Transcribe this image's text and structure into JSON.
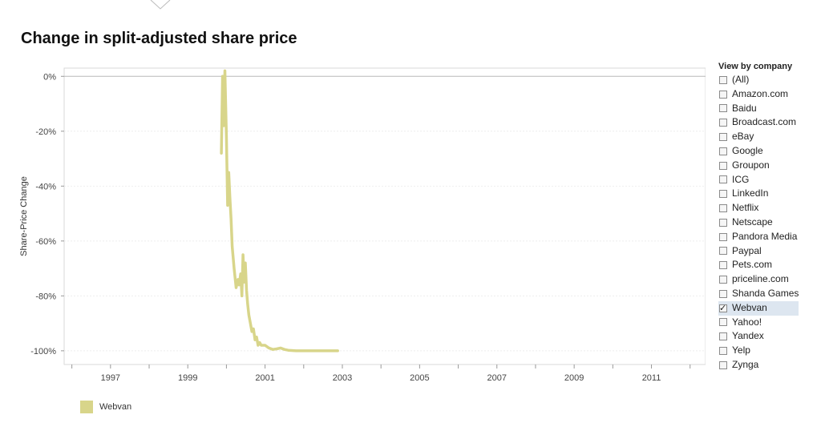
{
  "page": {
    "title": "Change in split-adjusted share price"
  },
  "filter": {
    "title": "View by company",
    "items": [
      {
        "label": "(All)",
        "checked": false
      },
      {
        "label": "Amazon.com",
        "checked": false
      },
      {
        "label": "Baidu",
        "checked": false
      },
      {
        "label": "Broadcast.com",
        "checked": false
      },
      {
        "label": "eBay",
        "checked": false
      },
      {
        "label": "Google",
        "checked": false
      },
      {
        "label": "Groupon",
        "checked": false
      },
      {
        "label": "ICG",
        "checked": false
      },
      {
        "label": "LinkedIn",
        "checked": false
      },
      {
        "label": "Netflix",
        "checked": false
      },
      {
        "label": "Netscape",
        "checked": false
      },
      {
        "label": "Pandora Media",
        "checked": false
      },
      {
        "label": "Paypal",
        "checked": false
      },
      {
        "label": "Pets.com",
        "checked": false
      },
      {
        "label": "priceline.com",
        "checked": false
      },
      {
        "label": "Shanda Games",
        "checked": false
      },
      {
        "label": "Webvan",
        "checked": true
      },
      {
        "label": "Yahoo!",
        "checked": false
      },
      {
        "label": "Yandex",
        "checked": false
      },
      {
        "label": "Yelp",
        "checked": false
      },
      {
        "label": "Zynga",
        "checked": false
      }
    ]
  },
  "chart_data": {
    "type": "line",
    "title": "Change in split-adjusted share price",
    "ylabel": "Share-Price Change",
    "xlabel": "",
    "xlim": [
      1995.8,
      2012.4
    ],
    "ylim": [
      -105,
      3
    ],
    "grid": true,
    "legend_position": "bottom-left",
    "x_ticks": [
      "1997",
      "1999",
      "2001",
      "2003",
      "2005",
      "2007",
      "2009",
      "2011"
    ],
    "y_ticks": [
      "0%",
      "-20%",
      "-40%",
      "-60%",
      "-80%",
      "-100%"
    ],
    "series": [
      {
        "name": "Webvan",
        "color": "#d8d58a",
        "x": [
          1999.87,
          1999.9,
          1999.93,
          1999.96,
          2000.0,
          2000.03,
          2000.06,
          2000.09,
          2000.12,
          2000.15,
          2000.2,
          2000.25,
          2000.3,
          2000.33,
          2000.37,
          2000.4,
          2000.43,
          2000.46,
          2000.49,
          2000.52,
          2000.55,
          2000.58,
          2000.62,
          2000.66,
          2000.7,
          2000.74,
          2000.78,
          2000.82,
          2000.86,
          2000.9,
          2000.95,
          2001.0,
          2001.1,
          2001.2,
          2001.3,
          2001.4,
          2001.5,
          2001.6,
          2001.8,
          2002.0,
          2002.3,
          2002.6,
          2002.88
        ],
        "values": [
          -28,
          0,
          -18,
          2,
          -22,
          -47,
          -35,
          -44,
          -52,
          -62,
          -70,
          -77,
          -74,
          -76,
          -72,
          -80,
          -65,
          -75,
          -68,
          -78,
          -83,
          -87,
          -90,
          -93,
          -92,
          -96,
          -95,
          -98,
          -97,
          -98,
          -98,
          -98,
          -99,
          -99.5,
          -99.3,
          -99,
          -99.5,
          -99.8,
          -100,
          -100,
          -100,
          -100,
          -100
        ]
      }
    ]
  }
}
